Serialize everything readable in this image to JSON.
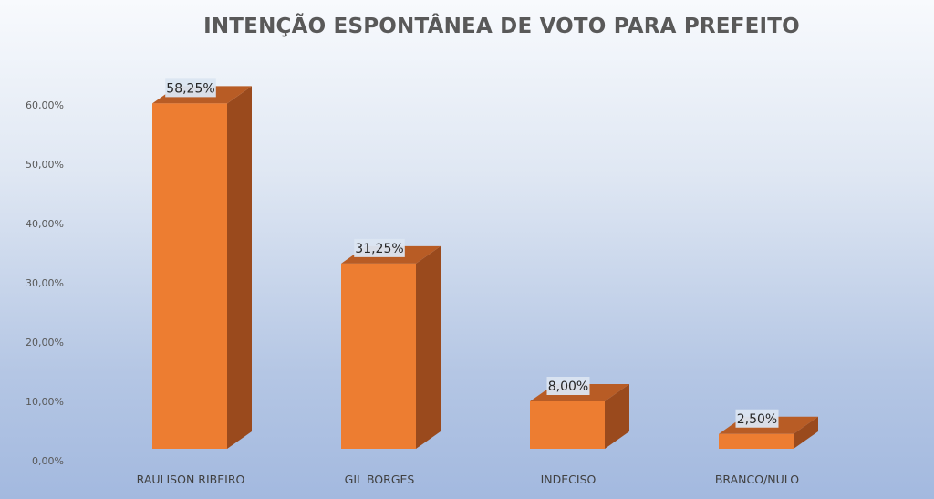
{
  "chart_data": {
    "type": "bar",
    "title": "INTENÇÃO ESPONTÂNEA DE VOTO PARA PREFEITO",
    "categories": [
      "RAULISON RIBEIRO",
      "GIL BORGES",
      "INDECISO",
      "BRANCO/NULO"
    ],
    "values": [
      58.25,
      31.25,
      8.0,
      2.5
    ],
    "data_labels": [
      "58,25%",
      "31,25%",
      "8,00%",
      "2,50%"
    ],
    "y_tick_labels": [
      "0,00%",
      "10,00%",
      "20,00%",
      "30,00%",
      "40,00%",
      "50,00%",
      "60,00%"
    ],
    "ylim": [
      0,
      60
    ],
    "grid": false,
    "legend": "none",
    "style": "3d-column",
    "colors": {
      "bar_front": "#ed7d31",
      "bar_side": "#9a4a1d",
      "bar_top": "#b85c25",
      "label_bg": "#dbe5f1"
    }
  }
}
